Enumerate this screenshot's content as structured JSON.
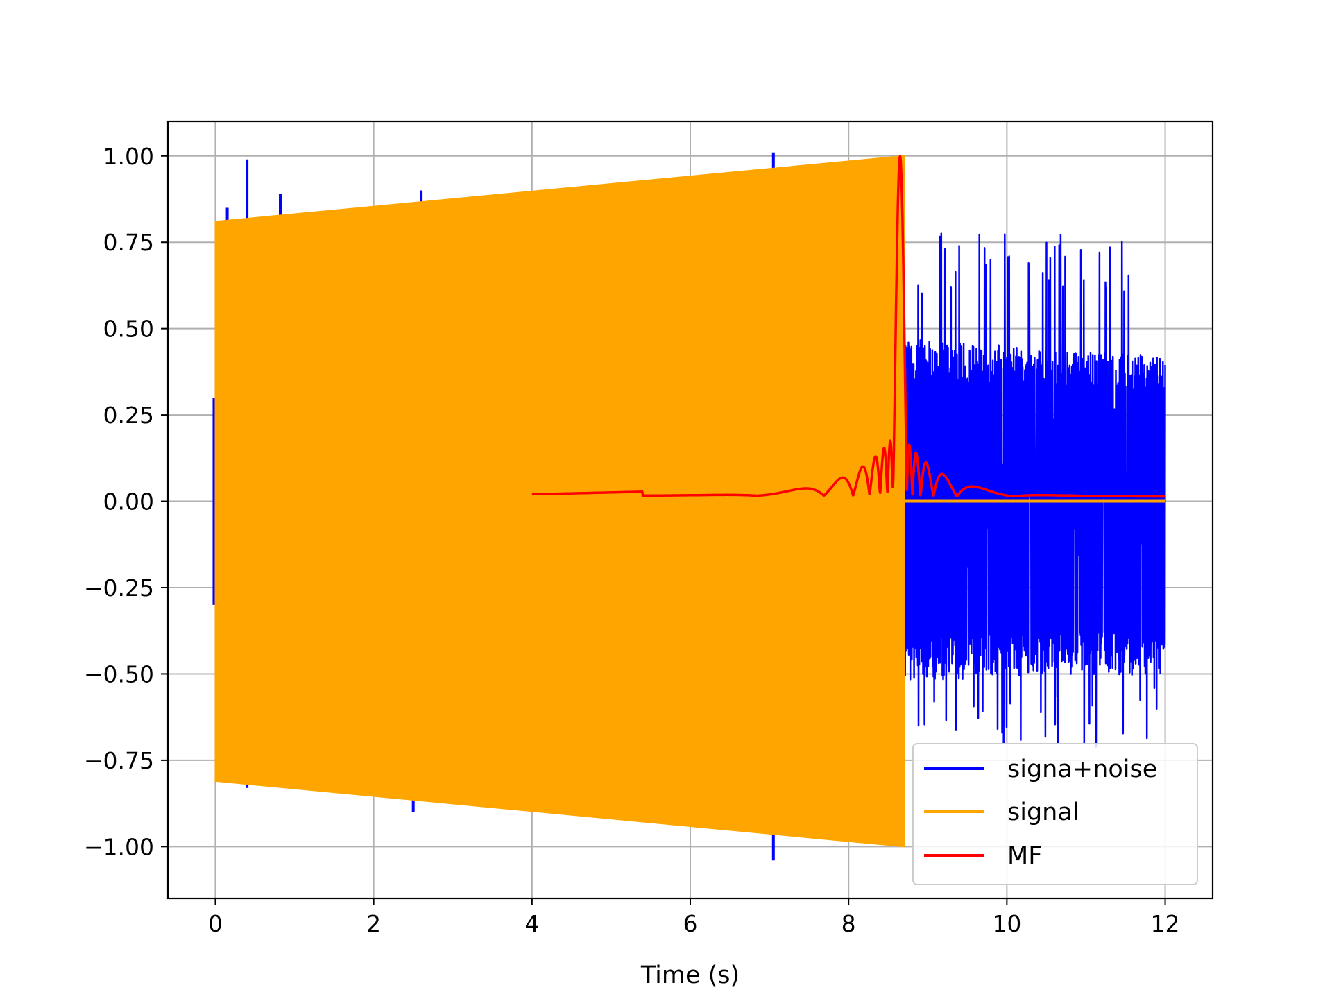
{
  "chart_data": {
    "type": "line",
    "title": "",
    "xlabel": "Time (s)",
    "ylabel": "",
    "xlim": [
      -0.6,
      12.6
    ],
    "ylim": [
      -1.15,
      1.1
    ],
    "grid": true,
    "legend_position": "lower-right",
    "xticks": [
      0,
      2,
      4,
      6,
      8,
      10,
      12
    ],
    "xtick_labels": [
      "0",
      "2",
      "4",
      "6",
      "8",
      "10",
      "12"
    ],
    "yticks": [
      1.0,
      0.75,
      0.5,
      0.25,
      0.0,
      -0.25,
      -0.5,
      -0.75,
      -1.0
    ],
    "ytick_labels": [
      "1.00",
      "0.75",
      "0.50",
      "0.25",
      "0.00",
      "−0.25",
      "−0.50",
      "−0.75",
      "−1.00"
    ],
    "series": [
      {
        "name": "signa+noise",
        "color": "#0000ff",
        "t_range": [
          0,
          12.0
        ],
        "noise_envelope": {
          "x": [
            8.7,
            12.0
          ],
          "upper": [
            0.47,
            0.42
          ],
          "lower": [
            -0.52,
            -0.5
          ],
          "spike_max": 0.78,
          "spike_min": -0.72
        },
        "spikes": [
          {
            "x": 0.15,
            "y": 0.85
          },
          {
            "x": 0.4,
            "y": 0.99
          },
          {
            "x": 0.4,
            "y": -0.83
          },
          {
            "x": 0.82,
            "y": 0.89
          },
          {
            "x": 2.6,
            "y": 0.9
          },
          {
            "x": 2.5,
            "y": -0.9
          },
          {
            "x": 6.28,
            "y": 0.94
          },
          {
            "x": 7.05,
            "y": 1.01
          },
          {
            "x": 7.05,
            "y": -1.04
          }
        ]
      },
      {
        "name": "signal",
        "color": "#ffa500",
        "t_range": [
          0,
          8.7
        ],
        "envelope": {
          "x": [
            0,
            8.7
          ],
          "amplitude": [
            0.81,
            1.0
          ]
        },
        "after": {
          "x": [
            8.7,
            12.0
          ],
          "y": 0.0
        }
      },
      {
        "name": "MF",
        "color": "#ff0000",
        "t_range": [
          4.0,
          12.0
        ],
        "peak": {
          "x": 8.65,
          "y": 1.0
        },
        "baseline": 0.02
      }
    ]
  }
}
